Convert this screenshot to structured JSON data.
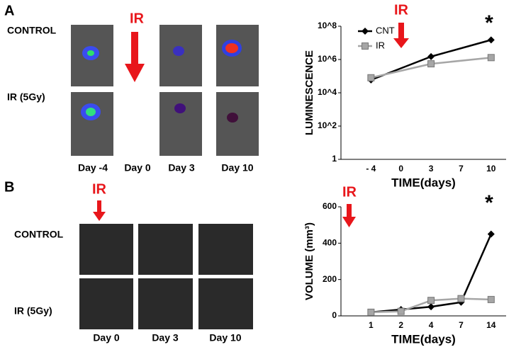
{
  "panel_a": {
    "label": "A",
    "row_labels": [
      "CONTROL",
      "IR (5Gy)"
    ],
    "ir_label": "IR",
    "day_labels": [
      "Day -4",
      "Day 0",
      "Day 3",
      "Day 10"
    ]
  },
  "panel_b": {
    "label": "B",
    "row_labels": [
      "CONTROL",
      "IR (5Gy)"
    ],
    "ir_label": "IR",
    "day_labels": [
      "Day 0",
      "Day 3",
      "Day 10"
    ]
  },
  "chart_data": [
    {
      "type": "line",
      "ylabel": "LUMINESCENCE",
      "xlabel": "TIME(days)",
      "annotations": [
        "IR",
        "*"
      ],
      "categories": [
        "- 4",
        "0",
        "3",
        "7",
        "10"
      ],
      "log": true,
      "ylim": [
        1,
        100000000
      ],
      "yticks": [
        1,
        {
          "value": 100,
          "label": "10^2"
        },
        {
          "value": 10000,
          "label": "10^4"
        },
        {
          "value": 1000000,
          "label": "10^6"
        },
        {
          "value": 100000000,
          "label": "10^8"
        }
      ],
      "series": [
        {
          "name": "CNT",
          "color": "#000000",
          "values": [
            59000,
            null,
            1500000,
            null,
            15000000
          ]
        },
        {
          "name": "IR",
          "color": "#a6a6a6",
          "values": [
            80000,
            null,
            550000,
            null,
            1300000
          ]
        }
      ]
    },
    {
      "type": "line",
      "ylabel": "VOLUME (mm³)",
      "xlabel": "TIME(days)",
      "annotations": [
        "IR",
        "*"
      ],
      "categories": [
        "1",
        "2",
        "4",
        "7",
        "14"
      ],
      "log": false,
      "ylim": [
        0,
        600
      ],
      "yticks": [
        0,
        200,
        400,
        600
      ],
      "series": [
        {
          "color": "#000000",
          "values": [
            20,
            35,
            50,
            75,
            450
          ]
        },
        {
          "color": "#a6a6a6",
          "values": [
            20,
            25,
            85,
            95,
            90
          ]
        }
      ]
    }
  ]
}
